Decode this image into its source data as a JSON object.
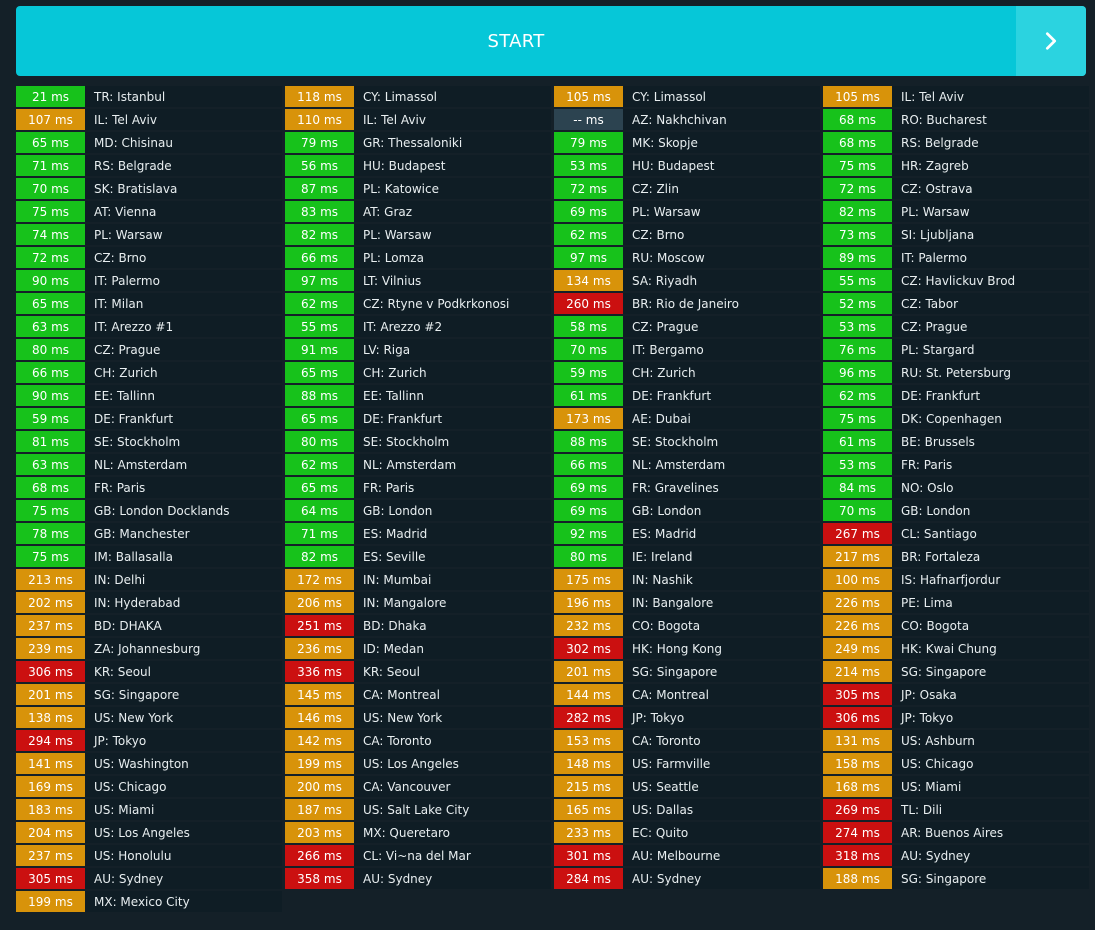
{
  "start_button": {
    "label": "START",
    "arrow_icon": "chevron-right-icon"
  },
  "status_colors": {
    "good": "#17c21b",
    "warn": "#d8930a",
    "bad": "#cb1010",
    "none": "#2c4350"
  },
  "columns": [
    [
      {
        "ms": "21 ms",
        "loc": "TR: Istanbul",
        "s": "good"
      },
      {
        "ms": "107 ms",
        "loc": "IL: Tel Aviv",
        "s": "warn"
      },
      {
        "ms": "65 ms",
        "loc": "MD: Chisinau",
        "s": "good"
      },
      {
        "ms": "71 ms",
        "loc": "RS: Belgrade",
        "s": "good"
      },
      {
        "ms": "70 ms",
        "loc": "SK: Bratislava",
        "s": "good"
      },
      {
        "ms": "75 ms",
        "loc": "AT: Vienna",
        "s": "good"
      },
      {
        "ms": "74 ms",
        "loc": "PL: Warsaw",
        "s": "good"
      },
      {
        "ms": "72 ms",
        "loc": "CZ: Brno",
        "s": "good"
      },
      {
        "ms": "90 ms",
        "loc": "IT: Palermo",
        "s": "good"
      },
      {
        "ms": "65 ms",
        "loc": "IT: Milan",
        "s": "good"
      },
      {
        "ms": "63 ms",
        "loc": "IT: Arezzo #1",
        "s": "good"
      },
      {
        "ms": "80 ms",
        "loc": "CZ: Prague",
        "s": "good"
      },
      {
        "ms": "66 ms",
        "loc": "CH: Zurich",
        "s": "good"
      },
      {
        "ms": "90 ms",
        "loc": "EE: Tallinn",
        "s": "good"
      },
      {
        "ms": "59 ms",
        "loc": "DE: Frankfurt",
        "s": "good"
      },
      {
        "ms": "81 ms",
        "loc": "SE: Stockholm",
        "s": "good"
      },
      {
        "ms": "63 ms",
        "loc": "NL: Amsterdam",
        "s": "good"
      },
      {
        "ms": "68 ms",
        "loc": "FR: Paris",
        "s": "good"
      },
      {
        "ms": "75 ms",
        "loc": "GB: London Docklands",
        "s": "good"
      },
      {
        "ms": "78 ms",
        "loc": "GB: Manchester",
        "s": "good"
      },
      {
        "ms": "75 ms",
        "loc": "IM: Ballasalla",
        "s": "good"
      },
      {
        "ms": "213 ms",
        "loc": "IN: Delhi",
        "s": "warn"
      },
      {
        "ms": "202 ms",
        "loc": "IN: Hyderabad",
        "s": "warn"
      },
      {
        "ms": "237 ms",
        "loc": "BD: DHAKA",
        "s": "warn"
      },
      {
        "ms": "239 ms",
        "loc": "ZA: Johannesburg",
        "s": "warn"
      },
      {
        "ms": "306 ms",
        "loc": "KR: Seoul",
        "s": "bad"
      },
      {
        "ms": "201 ms",
        "loc": "SG: Singapore",
        "s": "warn"
      },
      {
        "ms": "138 ms",
        "loc": "US: New York",
        "s": "warn"
      },
      {
        "ms": "294 ms",
        "loc": "JP: Tokyo",
        "s": "bad"
      },
      {
        "ms": "141 ms",
        "loc": "US: Washington",
        "s": "warn"
      },
      {
        "ms": "169 ms",
        "loc": "US: Chicago",
        "s": "warn"
      },
      {
        "ms": "183 ms",
        "loc": "US: Miami",
        "s": "warn"
      },
      {
        "ms": "204 ms",
        "loc": "US: Los Angeles",
        "s": "warn"
      },
      {
        "ms": "237 ms",
        "loc": "US: Honolulu",
        "s": "warn"
      },
      {
        "ms": "305 ms",
        "loc": "AU: Sydney",
        "s": "bad"
      },
      {
        "ms": "199 ms",
        "loc": "MX: Mexico City",
        "s": "warn"
      }
    ],
    [
      {
        "ms": "118 ms",
        "loc": "CY: Limassol",
        "s": "warn"
      },
      {
        "ms": "110 ms",
        "loc": "IL: Tel Aviv",
        "s": "warn"
      },
      {
        "ms": "79 ms",
        "loc": "GR: Thessaloniki",
        "s": "good"
      },
      {
        "ms": "56 ms",
        "loc": "HU: Budapest",
        "s": "good"
      },
      {
        "ms": "87 ms",
        "loc": "PL: Katowice",
        "s": "good"
      },
      {
        "ms": "83 ms",
        "loc": "AT: Graz",
        "s": "good"
      },
      {
        "ms": "82 ms",
        "loc": "PL: Warsaw",
        "s": "good"
      },
      {
        "ms": "66 ms",
        "loc": "PL: Lomza",
        "s": "good"
      },
      {
        "ms": "97 ms",
        "loc": "LT: Vilnius",
        "s": "good"
      },
      {
        "ms": "62 ms",
        "loc": "CZ: Rtyne v Podkrkonosi",
        "s": "good"
      },
      {
        "ms": "55 ms",
        "loc": "IT: Arezzo #2",
        "s": "good"
      },
      {
        "ms": "91 ms",
        "loc": "LV: Riga",
        "s": "good"
      },
      {
        "ms": "65 ms",
        "loc": "CH: Zurich",
        "s": "good"
      },
      {
        "ms": "88 ms",
        "loc": "EE: Tallinn",
        "s": "good"
      },
      {
        "ms": "65 ms",
        "loc": "DE: Frankfurt",
        "s": "good"
      },
      {
        "ms": "80 ms",
        "loc": "SE: Stockholm",
        "s": "good"
      },
      {
        "ms": "62 ms",
        "loc": "NL: Amsterdam",
        "s": "good"
      },
      {
        "ms": "65 ms",
        "loc": "FR: Paris",
        "s": "good"
      },
      {
        "ms": "64 ms",
        "loc": "GB: London",
        "s": "good"
      },
      {
        "ms": "71 ms",
        "loc": "ES: Madrid",
        "s": "good"
      },
      {
        "ms": "82 ms",
        "loc": "ES: Seville",
        "s": "good"
      },
      {
        "ms": "172 ms",
        "loc": "IN: Mumbai",
        "s": "warn"
      },
      {
        "ms": "206 ms",
        "loc": "IN: Mangalore",
        "s": "warn"
      },
      {
        "ms": "251 ms",
        "loc": "BD: Dhaka",
        "s": "bad"
      },
      {
        "ms": "236 ms",
        "loc": "ID: Medan",
        "s": "warn"
      },
      {
        "ms": "336 ms",
        "loc": "KR: Seoul",
        "s": "bad"
      },
      {
        "ms": "145 ms",
        "loc": "CA: Montreal",
        "s": "warn"
      },
      {
        "ms": "146 ms",
        "loc": "US: New York",
        "s": "warn"
      },
      {
        "ms": "142 ms",
        "loc": "CA: Toronto",
        "s": "warn"
      },
      {
        "ms": "199 ms",
        "loc": "US: Los Angeles",
        "s": "warn"
      },
      {
        "ms": "200 ms",
        "loc": "CA: Vancouver",
        "s": "warn"
      },
      {
        "ms": "187 ms",
        "loc": "US: Salt Lake City",
        "s": "warn"
      },
      {
        "ms": "203 ms",
        "loc": "MX: Queretaro",
        "s": "warn"
      },
      {
        "ms": "266 ms",
        "loc": "CL: Vi~na del Mar",
        "s": "bad"
      },
      {
        "ms": "358 ms",
        "loc": "AU: Sydney",
        "s": "bad"
      }
    ],
    [
      {
        "ms": "105 ms",
        "loc": "CY: Limassol",
        "s": "warn"
      },
      {
        "ms": "-- ms",
        "loc": "AZ: Nakhchivan",
        "s": "none"
      },
      {
        "ms": "79 ms",
        "loc": "MK: Skopje",
        "s": "good"
      },
      {
        "ms": "53 ms",
        "loc": "HU: Budapest",
        "s": "good"
      },
      {
        "ms": "72 ms",
        "loc": "CZ: Zlin",
        "s": "good"
      },
      {
        "ms": "69 ms",
        "loc": "PL: Warsaw",
        "s": "good"
      },
      {
        "ms": "62 ms",
        "loc": "CZ: Brno",
        "s": "good"
      },
      {
        "ms": "97 ms",
        "loc": "RU: Moscow",
        "s": "good"
      },
      {
        "ms": "134 ms",
        "loc": "SA: Riyadh",
        "s": "warn"
      },
      {
        "ms": "260 ms",
        "loc": "BR: Rio de Janeiro",
        "s": "bad"
      },
      {
        "ms": "58 ms",
        "loc": "CZ: Prague",
        "s": "good"
      },
      {
        "ms": "70 ms",
        "loc": "IT: Bergamo",
        "s": "good"
      },
      {
        "ms": "59 ms",
        "loc": "CH: Zurich",
        "s": "good"
      },
      {
        "ms": "61 ms",
        "loc": "DE: Frankfurt",
        "s": "good"
      },
      {
        "ms": "173 ms",
        "loc": "AE: Dubai",
        "s": "warn"
      },
      {
        "ms": "88 ms",
        "loc": "SE: Stockholm",
        "s": "good"
      },
      {
        "ms": "66 ms",
        "loc": "NL: Amsterdam",
        "s": "good"
      },
      {
        "ms": "69 ms",
        "loc": "FR: Gravelines",
        "s": "good"
      },
      {
        "ms": "69 ms",
        "loc": "GB: London",
        "s": "good"
      },
      {
        "ms": "92 ms",
        "loc": "ES: Madrid",
        "s": "good"
      },
      {
        "ms": "80 ms",
        "loc": "IE: Ireland",
        "s": "good"
      },
      {
        "ms": "175 ms",
        "loc": "IN: Nashik",
        "s": "warn"
      },
      {
        "ms": "196 ms",
        "loc": "IN: Bangalore",
        "s": "warn"
      },
      {
        "ms": "232 ms",
        "loc": "CO: Bogota",
        "s": "warn"
      },
      {
        "ms": "302 ms",
        "loc": "HK: Hong Kong",
        "s": "bad"
      },
      {
        "ms": "201 ms",
        "loc": "SG: Singapore",
        "s": "warn"
      },
      {
        "ms": "144 ms",
        "loc": "CA: Montreal",
        "s": "warn"
      },
      {
        "ms": "282 ms",
        "loc": "JP: Tokyo",
        "s": "bad"
      },
      {
        "ms": "153 ms",
        "loc": "CA: Toronto",
        "s": "warn"
      },
      {
        "ms": "148 ms",
        "loc": "US: Farmville",
        "s": "warn"
      },
      {
        "ms": "215 ms",
        "loc": "US: Seattle",
        "s": "warn"
      },
      {
        "ms": "165 ms",
        "loc": "US: Dallas",
        "s": "warn"
      },
      {
        "ms": "233 ms",
        "loc": "EC: Quito",
        "s": "warn"
      },
      {
        "ms": "301 ms",
        "loc": "AU: Melbourne",
        "s": "bad"
      },
      {
        "ms": "284 ms",
        "loc": "AU: Sydney",
        "s": "bad"
      }
    ],
    [
      {
        "ms": "105 ms",
        "loc": "IL: Tel Aviv",
        "s": "warn"
      },
      {
        "ms": "68 ms",
        "loc": "RO: Bucharest",
        "s": "good"
      },
      {
        "ms": "68 ms",
        "loc": "RS: Belgrade",
        "s": "good"
      },
      {
        "ms": "75 ms",
        "loc": "HR: Zagreb",
        "s": "good"
      },
      {
        "ms": "72 ms",
        "loc": "CZ: Ostrava",
        "s": "good"
      },
      {
        "ms": "82 ms",
        "loc": "PL: Warsaw",
        "s": "good"
      },
      {
        "ms": "73 ms",
        "loc": "SI: Ljubljana",
        "s": "good"
      },
      {
        "ms": "89 ms",
        "loc": "IT: Palermo",
        "s": "good"
      },
      {
        "ms": "55 ms",
        "loc": "CZ: Havlickuv Brod",
        "s": "good"
      },
      {
        "ms": "52 ms",
        "loc": "CZ: Tabor",
        "s": "good"
      },
      {
        "ms": "53 ms",
        "loc": "CZ: Prague",
        "s": "good"
      },
      {
        "ms": "76 ms",
        "loc": "PL: Stargard",
        "s": "good"
      },
      {
        "ms": "96 ms",
        "loc": "RU: St. Petersburg",
        "s": "good"
      },
      {
        "ms": "62 ms",
        "loc": "DE: Frankfurt",
        "s": "good"
      },
      {
        "ms": "75 ms",
        "loc": "DK: Copenhagen",
        "s": "good"
      },
      {
        "ms": "61 ms",
        "loc": "BE: Brussels",
        "s": "good"
      },
      {
        "ms": "53 ms",
        "loc": "FR: Paris",
        "s": "good"
      },
      {
        "ms": "84 ms",
        "loc": "NO: Oslo",
        "s": "good"
      },
      {
        "ms": "70 ms",
        "loc": "GB: London",
        "s": "good"
      },
      {
        "ms": "267 ms",
        "loc": "CL: Santiago",
        "s": "bad"
      },
      {
        "ms": "217 ms",
        "loc": "BR: Fortaleza",
        "s": "warn"
      },
      {
        "ms": "100 ms",
        "loc": "IS: Hafnarfjordur",
        "s": "warn"
      },
      {
        "ms": "226 ms",
        "loc": "PE: Lima",
        "s": "warn"
      },
      {
        "ms": "226 ms",
        "loc": "CO: Bogota",
        "s": "warn"
      },
      {
        "ms": "249 ms",
        "loc": "HK: Kwai Chung",
        "s": "warn"
      },
      {
        "ms": "214 ms",
        "loc": "SG: Singapore",
        "s": "warn"
      },
      {
        "ms": "305 ms",
        "loc": "JP: Osaka",
        "s": "bad"
      },
      {
        "ms": "306 ms",
        "loc": "JP: Tokyo",
        "s": "bad"
      },
      {
        "ms": "131 ms",
        "loc": "US: Ashburn",
        "s": "warn"
      },
      {
        "ms": "158 ms",
        "loc": "US: Chicago",
        "s": "warn"
      },
      {
        "ms": "168 ms",
        "loc": "US: Miami",
        "s": "warn"
      },
      {
        "ms": "269 ms",
        "loc": "TL: Dili",
        "s": "bad"
      },
      {
        "ms": "274 ms",
        "loc": "AR: Buenos Aires",
        "s": "bad"
      },
      {
        "ms": "318 ms",
        "loc": "AU: Sydney",
        "s": "bad"
      },
      {
        "ms": "188 ms",
        "loc": "SG: Singapore",
        "s": "warn"
      }
    ]
  ]
}
